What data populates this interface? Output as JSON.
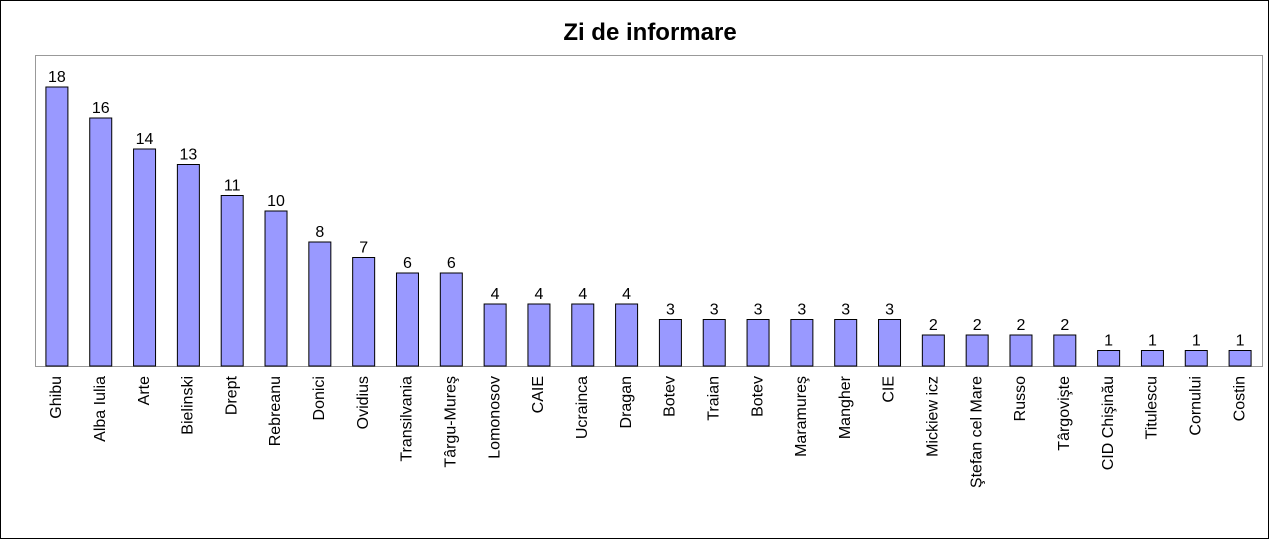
{
  "chart_data": {
    "type": "bar",
    "title": "Zi de informare",
    "categories": [
      "Ghibu",
      "Alba Iulia",
      "Arte",
      "Bielinski",
      "Drept",
      "Rebreanu",
      "Donici",
      "Ovidius",
      "Transilvania",
      "Târgu-Mureş",
      "Lomonosov",
      "CAIE",
      "Ucrainca",
      "Dragan",
      "Botev",
      "Traian",
      "Botev",
      "Maramureş",
      "Mangher",
      "CIE",
      "Mickiew icz",
      "Ştefan cel Mare",
      "Russo",
      "Târgovişte",
      "CID Chişinău",
      "Titulescu",
      "Cornului",
      "Costin"
    ],
    "values": [
      18,
      16,
      14,
      13,
      11,
      10,
      8,
      7,
      6,
      6,
      4,
      4,
      4,
      4,
      3,
      3,
      3,
      3,
      3,
      3,
      2,
      2,
      2,
      2,
      1,
      1,
      1,
      1
    ],
    "color": "#9999ff"
  }
}
